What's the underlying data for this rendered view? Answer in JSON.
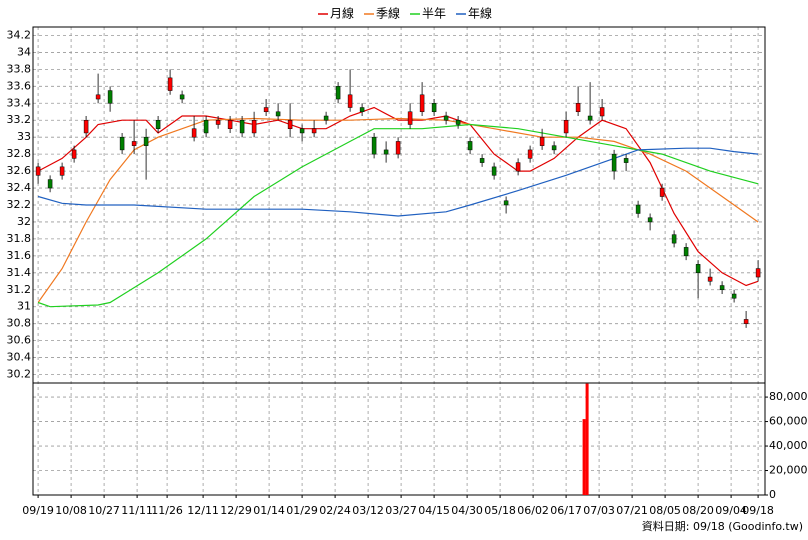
{
  "chart_data": {
    "type": "candlestick",
    "x": [
      0,
      4,
      8,
      12,
      16,
      20,
      24,
      28,
      32,
      36,
      40,
      44,
      48,
      52,
      56,
      60,
      64,
      68,
      72,
      76,
      80,
      84,
      88,
      92,
      96,
      100,
      104,
      108,
      112,
      116,
      120,
      124,
      128,
      132,
      136,
      140,
      144,
      148,
      152,
      156,
      160,
      164,
      168,
      172,
      176,
      180,
      184,
      188,
      192,
      196,
      200,
      204,
      208,
      212,
      216,
      220,
      224,
      228,
      232,
      236,
      240
    ],
    "open": [
      32.55,
      32.5,
      32.55,
      32.75,
      33.05,
      33.45,
      33.55,
      33.0,
      32.9,
      33.0,
      33.2,
      33.55,
      33.5,
      33.0,
      33.2,
      33.15,
      33.1,
      33.2,
      33.05,
      33.3,
      33.3,
      33.1,
      33.1,
      33.05,
      33.25,
      33.6,
      33.35,
      33.35,
      33.0,
      32.85,
      32.8,
      33.15,
      33.3,
      33.4,
      33.25,
      33.2,
      32.95,
      32.75,
      32.65,
      32.25,
      32.6,
      32.75,
      32.9,
      32.9,
      33.05,
      33.3,
      33.25,
      33.25,
      32.8,
      32.75,
      32.2,
      32.05,
      32.3,
      31.85,
      31.7,
      31.5,
      31.3,
      31.25,
      31.15,
      30.8,
      31.35
    ],
    "high": [
      32.7,
      32.55,
      32.7,
      32.9,
      33.25,
      33.75,
      33.6,
      33.05,
      33.2,
      33.1,
      33.25,
      33.8,
      33.55,
      33.25,
      33.25,
      33.25,
      33.25,
      33.25,
      33.3,
      33.45,
      33.4,
      33.4,
      33.15,
      33.2,
      33.3,
      33.65,
      33.8,
      33.4,
      33.05,
      32.95,
      33.0,
      33.4,
      33.65,
      33.45,
      33.3,
      33.25,
      33.0,
      32.8,
      32.7,
      32.3,
      32.75,
      32.9,
      33.1,
      32.95,
      33.3,
      33.6,
      33.65,
      33.45,
      32.85,
      32.8,
      32.25,
      32.1,
      32.45,
      31.9,
      31.75,
      31.55,
      31.45,
      31.3,
      31.2,
      30.95,
      31.55
    ],
    "low": [
      32.45,
      32.35,
      32.5,
      32.7,
      33.0,
      33.4,
      33.3,
      32.8,
      32.8,
      32.5,
      33.05,
      33.5,
      33.4,
      32.95,
      33.0,
      33.1,
      33.05,
      33.0,
      33.0,
      33.25,
      33.2,
      33.0,
      32.95,
      33.0,
      33.15,
      33.4,
      33.3,
      33.25,
      32.75,
      32.7,
      32.75,
      33.1,
      33.25,
      33.25,
      33.15,
      33.1,
      32.8,
      32.65,
      32.5,
      32.1,
      32.55,
      32.7,
      32.85,
      32.8,
      33.0,
      33.25,
      33.15,
      33.2,
      32.5,
      32.6,
      32.05,
      31.9,
      32.25,
      31.7,
      31.55,
      31.1,
      31.25,
      31.15,
      31.05,
      30.75,
      31.3
    ],
    "close": [
      32.65,
      32.4,
      32.65,
      32.85,
      33.2,
      33.5,
      33.4,
      32.85,
      32.95,
      32.9,
      33.1,
      33.7,
      33.45,
      33.1,
      33.05,
      33.2,
      33.2,
      33.05,
      33.2,
      33.35,
      33.25,
      33.2,
      33.05,
      33.1,
      33.2,
      33.45,
      33.5,
      33.3,
      32.8,
      32.8,
      32.95,
      33.3,
      33.5,
      33.3,
      33.2,
      33.15,
      32.85,
      32.7,
      32.55,
      32.2,
      32.7,
      32.85,
      33.0,
      32.85,
      33.2,
      33.4,
      33.2,
      33.35,
      32.6,
      32.7,
      32.1,
      32.0,
      32.4,
      31.75,
      31.6,
      31.4,
      31.35,
      31.2,
      31.1,
      30.85,
      31.45
    ],
    "up_color": "#ff0000",
    "down_color": "#008000",
    "xlim": [
      -1.7,
      242.3
    ],
    "xticks": [
      {
        "value": 0,
        "label": "09/19"
      },
      {
        "value": 11,
        "label": "10/08"
      },
      {
        "value": 22,
        "label": "10/27"
      },
      {
        "value": 33,
        "label": "11/11"
      },
      {
        "value": 43,
        "label": "11/26"
      },
      {
        "value": 55,
        "label": "12/11"
      },
      {
        "value": 66,
        "label": "12/29"
      },
      {
        "value": 77,
        "label": "01/14"
      },
      {
        "value": 88,
        "label": "01/29"
      },
      {
        "value": 99,
        "label": "02/24"
      },
      {
        "value": 110,
        "label": "03/12"
      },
      {
        "value": 121,
        "label": "03/27"
      },
      {
        "value": 132,
        "label": "04/15"
      },
      {
        "value": 143,
        "label": "04/30"
      },
      {
        "value": 154,
        "label": "05/18"
      },
      {
        "value": 165,
        "label": "06/02"
      },
      {
        "value": 176,
        "label": "06/17"
      },
      {
        "value": 187,
        "label": "07/03"
      },
      {
        "value": 198,
        "label": "07/21"
      },
      {
        "value": 209,
        "label": "08/05"
      },
      {
        "value": 220,
        "label": "08/20"
      },
      {
        "value": 231,
        "label": "09/04"
      },
      {
        "value": 240,
        "label": "09/18"
      }
    ],
    "ylim": [
      30.1,
      34.3
    ],
    "yticks": [
      30.2,
      30.4,
      30.6,
      30.8,
      31,
      31.2,
      31.4,
      31.6,
      31.8,
      32,
      32.2,
      32.4,
      32.6,
      32.8,
      33,
      33.2,
      33.4,
      33.6,
      33.8,
      34,
      34.2
    ],
    "grid": true,
    "series": [
      {
        "name": "月線",
        "color": "#e00000",
        "x": [
          0,
          8,
          16,
          20,
          28,
          36,
          40,
          48,
          56,
          64,
          72,
          80,
          88,
          96,
          104,
          112,
          120,
          128,
          136,
          144,
          152,
          160,
          164,
          172,
          180,
          188,
          196,
          204,
          212,
          220,
          228,
          236,
          240
        ],
        "values": [
          32.6,
          32.75,
          33.0,
          33.15,
          33.2,
          33.2,
          33.05,
          33.25,
          33.25,
          33.2,
          33.15,
          33.2,
          33.1,
          33.1,
          33.25,
          33.35,
          33.2,
          33.2,
          33.25,
          33.15,
          32.8,
          32.6,
          32.6,
          32.75,
          33.0,
          33.2,
          33.1,
          32.7,
          32.1,
          31.65,
          31.4,
          31.25,
          31.3
        ]
      },
      {
        "name": "季線",
        "color": "#f07820",
        "x": [
          0,
          8,
          16,
          24,
          32,
          40,
          48,
          56,
          72,
          88,
          104,
          120,
          136,
          152,
          168,
          180,
          192,
          204,
          216,
          228,
          240
        ],
        "values": [
          31.05,
          31.45,
          32.0,
          32.5,
          32.85,
          33.0,
          33.1,
          33.2,
          33.22,
          33.2,
          33.2,
          33.22,
          33.2,
          33.1,
          33.0,
          33.0,
          32.95,
          32.8,
          32.6,
          32.3,
          32.0
        ]
      },
      {
        "name": "半年",
        "color": "#20d020",
        "x": [
          0,
          4,
          20,
          24,
          40,
          56,
          72,
          88,
          104,
          112,
          128,
          144,
          160,
          176,
          192,
          208,
          224,
          240
        ],
        "values": [
          31.05,
          31.0,
          31.02,
          31.05,
          31.4,
          31.8,
          32.3,
          32.65,
          32.95,
          33.1,
          33.1,
          33.15,
          33.1,
          33.0,
          32.9,
          32.8,
          32.6,
          32.45
        ]
      },
      {
        "name": "年線",
        "color": "#2060c0",
        "x": [
          0,
          8,
          16,
          32,
          56,
          88,
          104,
          120,
          136,
          144,
          160,
          176,
          192,
          200,
          216,
          224,
          232,
          240
        ],
        "values": [
          32.3,
          32.22,
          32.2,
          32.2,
          32.15,
          32.15,
          32.12,
          32.07,
          32.12,
          32.2,
          32.37,
          32.55,
          32.75,
          32.85,
          32.87,
          32.87,
          32.83,
          32.8
        ]
      }
    ],
    "volume": {
      "x": [
        182,
        183
      ],
      "values": [
        62000,
        91000
      ],
      "color": "#ff0000",
      "ylim": [
        0,
        91500
      ],
      "yticks": [
        0,
        {
          "value": 20000,
          "label": "20,000"
        },
        {
          "value": 40000,
          "label": "40,000"
        },
        {
          "value": 60000,
          "label": "60,000"
        },
        {
          "value": 80000,
          "label": "80,000"
        }
      ]
    },
    "source": "資料日期: 09/18 (Goodinfo.tw)"
  }
}
